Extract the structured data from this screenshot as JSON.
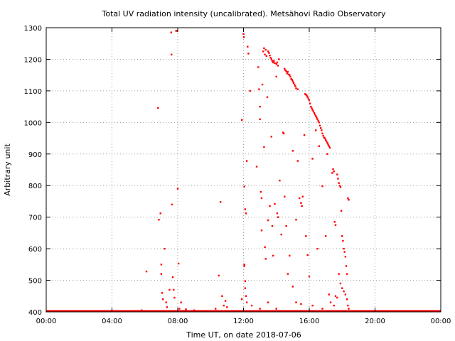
{
  "chart_data": {
    "type": "scatter",
    "title": "Total UV radiation intensity (uncalibrated). Metsähovi Radio Observatory",
    "xlabel": "Time UT, on date 2018-07-06",
    "ylabel": "Arbitrary unit",
    "xlim_hours": [
      0,
      24
    ],
    "ylim": [
      400,
      1300
    ],
    "x_ticks": [
      {
        "h": 0,
        "label": "00:00"
      },
      {
        "h": 4,
        "label": "04:00"
      },
      {
        "h": 8,
        "label": "08:00"
      },
      {
        "h": 12,
        "label": "12:00"
      },
      {
        "h": 16,
        "label": "16:00"
      },
      {
        "h": 20,
        "label": "20:00"
      },
      {
        "h": 24,
        "label": "00:00"
      }
    ],
    "y_ticks": [
      400,
      500,
      600,
      700,
      800,
      900,
      1000,
      1100,
      1200,
      1300
    ],
    "grid": true,
    "baseline_value": 400,
    "color": "#ff0000",
    "points": [
      [
        6.1,
        528
      ],
      [
        6.8,
        1046
      ],
      [
        6.85,
        692
      ],
      [
        6.95,
        712
      ],
      [
        7.0,
        550
      ],
      [
        7.0,
        520
      ],
      [
        7.05,
        460
      ],
      [
        7.1,
        440
      ],
      [
        7.2,
        600
      ],
      [
        7.3,
        430
      ],
      [
        7.35,
        415
      ],
      [
        7.5,
        470
      ],
      [
        7.6,
        1285
      ],
      [
        7.62,
        1215
      ],
      [
        7.65,
        740
      ],
      [
        7.7,
        510
      ],
      [
        7.75,
        470
      ],
      [
        7.8,
        445
      ],
      [
        7.9,
        1290
      ],
      [
        7.95,
        1290
      ],
      [
        8.0,
        790
      ],
      [
        8.05,
        553
      ],
      [
        8.1,
        410
      ],
      [
        8.2,
        430
      ],
      [
        10.5,
        515
      ],
      [
        10.6,
        748
      ],
      [
        10.7,
        450
      ],
      [
        10.8,
        420
      ],
      [
        10.9,
        435
      ],
      [
        11.0,
        415
      ],
      [
        11.9,
        1008
      ],
      [
        12.0,
        1280
      ],
      [
        12.02,
        1270
      ],
      [
        12.05,
        797
      ],
      [
        12.1,
        725
      ],
      [
        12.15,
        712
      ],
      [
        12.2,
        878
      ],
      [
        12.05,
        550
      ],
      [
        12.05,
        545
      ],
      [
        12.1,
        497
      ],
      [
        12.15,
        450
      ],
      [
        12.25,
        1240
      ],
      [
        12.3,
        1218
      ],
      [
        12.4,
        1100
      ],
      [
        12.8,
        860
      ],
      [
        12.9,
        1175
      ],
      [
        12.95,
        1105
      ],
      [
        13.0,
        1050
      ],
      [
        13.0,
        1010
      ],
      [
        13.05,
        780
      ],
      [
        13.1,
        760
      ],
      [
        13.1,
        658
      ],
      [
        13.15,
        1120
      ],
      [
        13.2,
        1225
      ],
      [
        13.25,
        1235
      ],
      [
        13.3,
        1215
      ],
      [
        13.35,
        1230
      ],
      [
        13.4,
        1210
      ],
      [
        13.45,
        1080
      ],
      [
        13.5,
        1225
      ],
      [
        13.55,
        1220
      ],
      [
        13.6,
        1212
      ],
      [
        13.65,
        1205
      ],
      [
        13.7,
        1200
      ],
      [
        13.75,
        1195
      ],
      [
        13.8,
        1190
      ],
      [
        13.85,
        1195
      ],
      [
        13.9,
        1188
      ],
      [
        14.0,
        1185
      ],
      [
        14.05,
        1190
      ],
      [
        14.1,
        1180
      ],
      [
        14.15,
        1200
      ],
      [
        13.25,
        922
      ],
      [
        13.3,
        605
      ],
      [
        13.35,
        568
      ],
      [
        13.5,
        690
      ],
      [
        13.6,
        735
      ],
      [
        13.7,
        955
      ],
      [
        13.75,
        672
      ],
      [
        13.8,
        578
      ],
      [
        13.9,
        742
      ],
      [
        14.0,
        1145
      ],
      [
        14.05,
        712
      ],
      [
        14.1,
        700
      ],
      [
        14.2,
        816
      ],
      [
        14.3,
        645
      ],
      [
        14.4,
        968
      ],
      [
        14.45,
        965
      ],
      [
        14.5,
        1170
      ],
      [
        14.55,
        1165
      ],
      [
        14.6,
        1162
      ],
      [
        14.65,
        1155
      ],
      [
        14.7,
        1160
      ],
      [
        14.75,
        1152
      ],
      [
        14.8,
        1150
      ],
      [
        14.85,
        1145
      ],
      [
        14.9,
        1138
      ],
      [
        14.95,
        1135
      ],
      [
        15.0,
        1130
      ],
      [
        15.05,
        1125
      ],
      [
        15.1,
        1120
      ],
      [
        15.15,
        1115
      ],
      [
        15.2,
        1108
      ],
      [
        15.3,
        1105
      ],
      [
        14.5,
        765
      ],
      [
        14.6,
        672
      ],
      [
        14.7,
        520
      ],
      [
        14.8,
        578
      ],
      [
        15.0,
        910
      ],
      [
        15.2,
        692
      ],
      [
        15.3,
        878
      ],
      [
        15.4,
        760
      ],
      [
        15.5,
        745
      ],
      [
        15.55,
        735
      ],
      [
        15.6,
        765
      ],
      [
        15.7,
        960
      ],
      [
        15.75,
        1090
      ],
      [
        15.8,
        1088
      ],
      [
        15.85,
        1085
      ],
      [
        15.9,
        1080
      ],
      [
        15.95,
        1075
      ],
      [
        16.0,
        1070
      ],
      [
        16.05,
        1060
      ],
      [
        16.1,
        1050
      ],
      [
        16.15,
        1045
      ],
      [
        16.2,
        1040
      ],
      [
        16.25,
        1035
      ],
      [
        16.3,
        1030
      ],
      [
        16.35,
        1025
      ],
      [
        16.4,
        1020
      ],
      [
        16.45,
        1015
      ],
      [
        16.5,
        1010
      ],
      [
        16.55,
        1005
      ],
      [
        16.6,
        1000
      ],
      [
        16.65,
        990
      ],
      [
        16.7,
        982
      ],
      [
        16.75,
        975
      ],
      [
        16.8,
        965
      ],
      [
        16.85,
        958
      ],
      [
        16.9,
        952
      ],
      [
        16.95,
        950
      ],
      [
        17.0,
        945
      ],
      [
        17.05,
        940
      ],
      [
        17.1,
        935
      ],
      [
        17.15,
        930
      ],
      [
        17.2,
        925
      ],
      [
        17.25,
        920
      ],
      [
        15.8,
        640
      ],
      [
        15.9,
        580
      ],
      [
        16.0,
        512
      ],
      [
        16.2,
        885
      ],
      [
        16.4,
        975
      ],
      [
        16.5,
        600
      ],
      [
        16.6,
        925
      ],
      [
        16.8,
        798
      ],
      [
        17.0,
        640
      ],
      [
        17.1,
        900
      ],
      [
        17.2,
        455
      ],
      [
        17.3,
        430
      ],
      [
        17.4,
        840
      ],
      [
        17.45,
        852
      ],
      [
        17.5,
        845
      ],
      [
        17.55,
        685
      ],
      [
        17.6,
        675
      ],
      [
        17.7,
        835
      ],
      [
        17.75,
        822
      ],
      [
        17.8,
        808
      ],
      [
        17.85,
        800
      ],
      [
        17.9,
        795
      ],
      [
        17.95,
        720
      ],
      [
        18.0,
        640
      ],
      [
        18.05,
        625
      ],
      [
        18.1,
        600
      ],
      [
        18.15,
        590
      ],
      [
        18.2,
        575
      ],
      [
        18.25,
        545
      ],
      [
        18.3,
        520
      ],
      [
        18.35,
        760
      ],
      [
        18.4,
        755
      ],
      [
        17.6,
        450
      ],
      [
        17.7,
        445
      ],
      [
        17.8,
        520
      ],
      [
        17.9,
        490
      ],
      [
        18.0,
        475
      ],
      [
        18.1,
        465
      ],
      [
        18.2,
        455
      ],
      [
        18.3,
        440
      ],
      [
        18.35,
        420
      ],
      [
        18.4,
        410
      ],
      [
        12.1,
        475
      ],
      [
        12.2,
        430
      ],
      [
        12.5,
        420
      ],
      [
        13.0,
        410
      ],
      [
        13.5,
        430
      ],
      [
        14.0,
        410
      ],
      [
        15.0,
        480
      ],
      [
        15.2,
        430
      ],
      [
        15.5,
        425
      ],
      [
        16.2,
        420
      ],
      [
        16.8,
        410
      ],
      [
        17.5,
        420
      ],
      [
        11.9,
        440
      ],
      [
        10.3,
        410
      ],
      [
        9.0,
        405
      ],
      [
        8.5,
        408
      ],
      [
        5.8,
        405
      ]
    ]
  }
}
